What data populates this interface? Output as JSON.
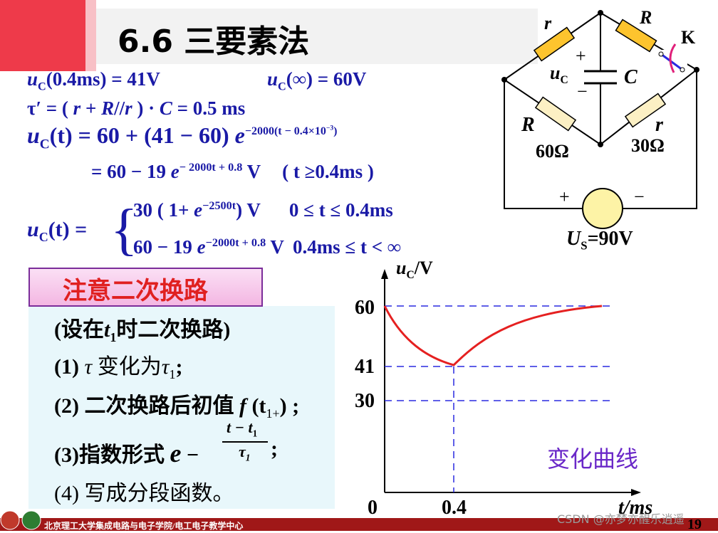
{
  "header": {
    "title": "6.6 三要素法"
  },
  "formulas": [
    [
      "u",
      "C",
      "(0.4ms) = 41V"
    ],
    [
      "u",
      "C",
      "(∞) = 60V"
    ],
    [
      "τ′ = ( ",
      "r",
      " + ",
      "R",
      "//",
      "r",
      " ) · ",
      "C",
      " = 0.5 ms"
    ],
    [
      "u",
      "C",
      "(t) = 60 + (41 − 60) ",
      "e",
      "−2000(t − 0.4×10",
      "−3",
      ")"
    ],
    [
      "= 60 − 19 ",
      "e",
      "− 2000t + 0.8",
      " V",
      "( t ≥0.4ms )"
    ]
  ],
  "piecewise": {
    "lhs": [
      "u",
      "C",
      "(t) = "
    ],
    "cases": [
      [
        "30 ( 1+ ",
        "e",
        "−2500t",
        ") V",
        "0 ≤ t ≤ 0.4ms"
      ],
      [
        "60 − 19 ",
        "e",
        "−2000t + 0.8",
        " V",
        "0.4ms ≤ t < ∞"
      ]
    ]
  },
  "circuit": {
    "r_top": "r",
    "R_top": "R",
    "switch": "K",
    "cap_plus": "+",
    "cap_u": "u",
    "cap_u_sub": "C",
    "cap_label": "C",
    "cap_minus": "−",
    "R_bottom": "R",
    "R_bottom_value": "60Ω",
    "r_bottom": "r",
    "r_bottom_value": "30Ω",
    "src_plus": "+",
    "src_minus": "−",
    "src_label": "U",
    "src_sub": "S",
    "src_value": "=90V"
  },
  "note": {
    "title": "注意二次换路",
    "steps": [
      [
        "(设在",
        "t",
        "1",
        "时二次换路)"
      ],
      [
        "(1) ",
        "τ ",
        "变化为",
        "τ",
        "1",
        ";"
      ],
      [
        "(2) 二次换路后初值 ",
        "f",
        " (t",
        "1+",
        ") ;"
      ],
      [
        "(3)指数形式 ",
        "e",
        " −",
        "t − t",
        "1",
        "τ",
        "1",
        " ;"
      ],
      [
        "(4) 写成分段函数。"
      ]
    ]
  },
  "graph": {
    "y_axis_label": [
      "u",
      "C",
      "/V"
    ],
    "y_ticks": [
      "60",
      "41",
      "30"
    ],
    "origin": "0",
    "x_ticks": [
      "0.4"
    ],
    "x_axis_label": "t/ms",
    "caption": "变化曲线"
  },
  "footer": {
    "text": "北京理工大学集成电路与电子学院/电工电子教学中心",
    "page": "19",
    "watermark": "CSDN @亦梦亦醒乐逍遥"
  }
}
